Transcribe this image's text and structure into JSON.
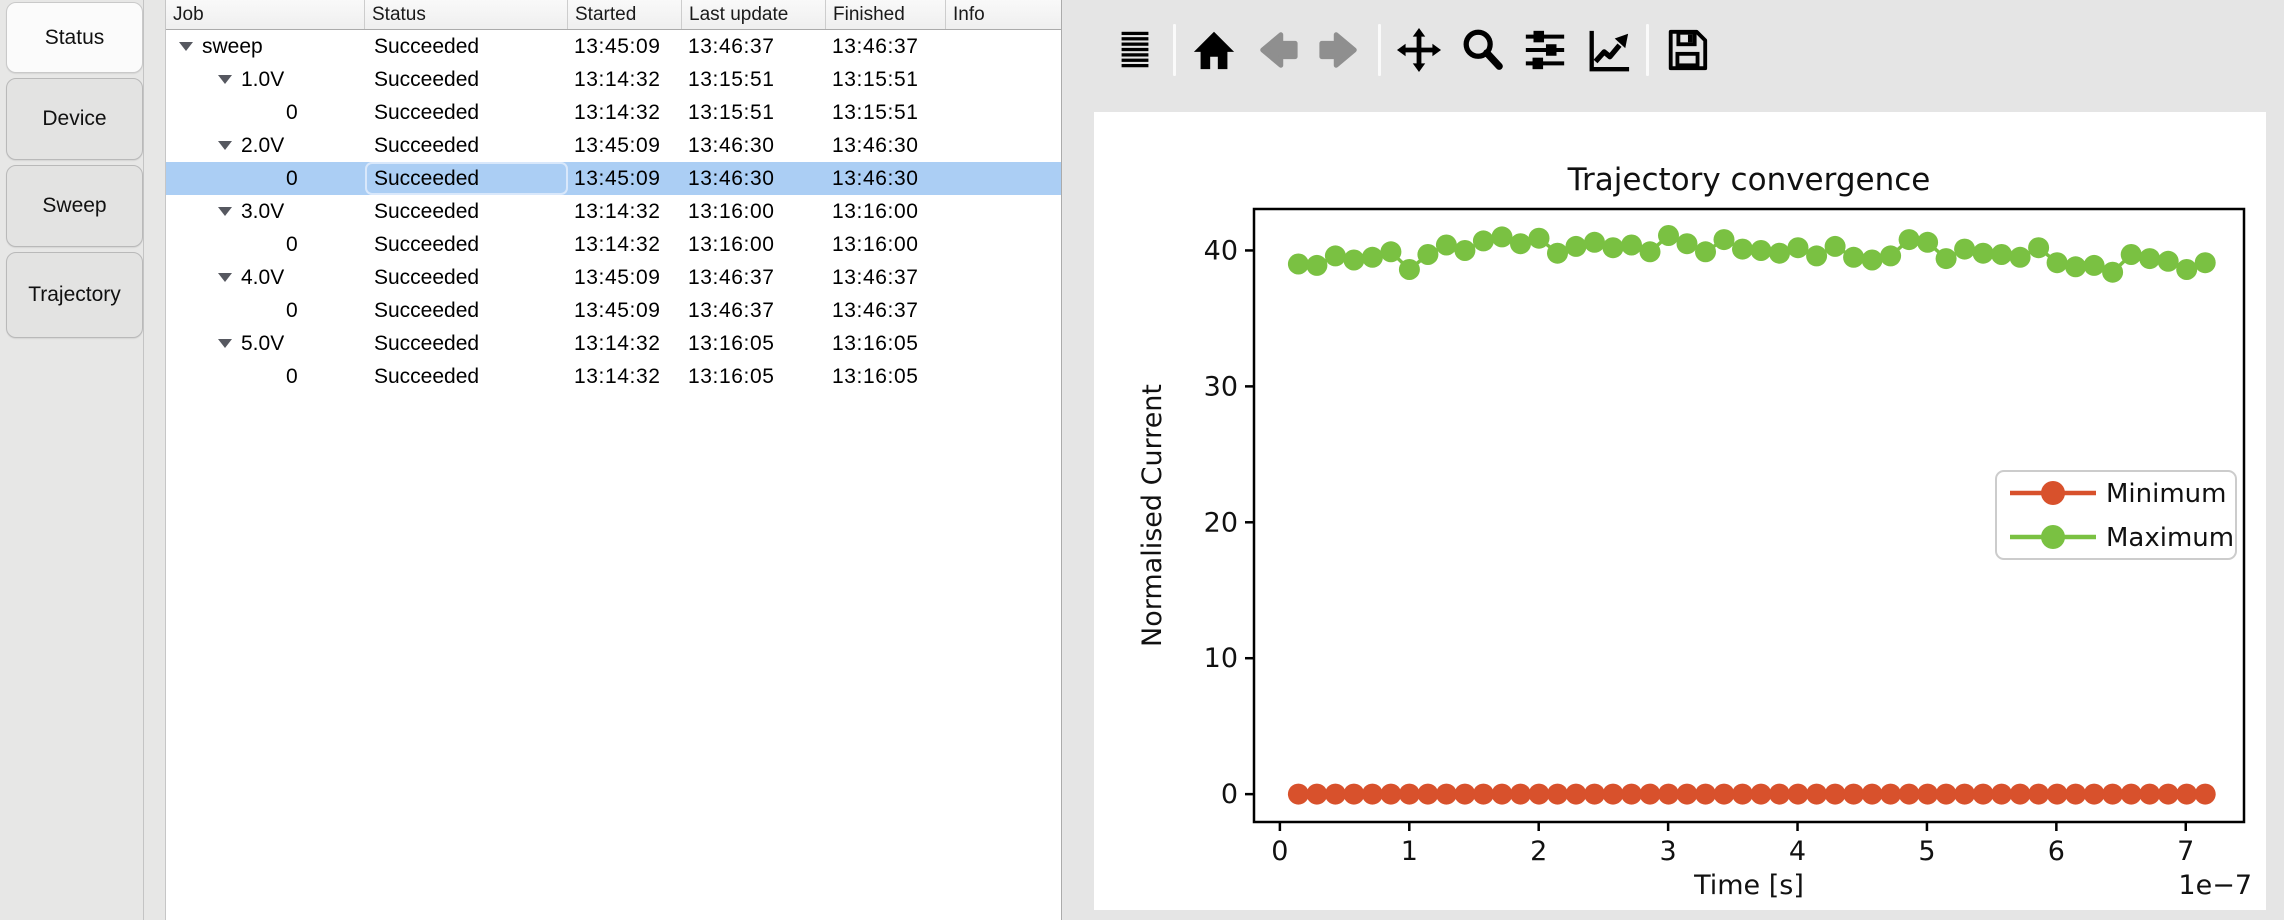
{
  "sidebar": {
    "tabs": [
      {
        "label": "Status",
        "active": true
      },
      {
        "label": "Device",
        "active": false
      },
      {
        "label": "Sweep",
        "active": false
      },
      {
        "label": "Trajectory",
        "active": false
      }
    ]
  },
  "table": {
    "columns": [
      "Job",
      "Status",
      "Started",
      "Last update",
      "Finished",
      "Info"
    ],
    "rows": [
      {
        "job": "sweep",
        "level": 0,
        "expandable": true,
        "status": "Succeeded",
        "started": "13:45:09",
        "last_update": "13:46:37",
        "finished": "13:46:37",
        "info": "",
        "selected": false
      },
      {
        "job": "1.0V",
        "level": 1,
        "expandable": true,
        "status": "Succeeded",
        "started": "13:14:32",
        "last_update": "13:15:51",
        "finished": "13:15:51",
        "info": "",
        "selected": false
      },
      {
        "job": "0",
        "level": 2,
        "expandable": false,
        "status": "Succeeded",
        "started": "13:14:32",
        "last_update": "13:15:51",
        "finished": "13:15:51",
        "info": "",
        "selected": false
      },
      {
        "job": "2.0V",
        "level": 1,
        "expandable": true,
        "status": "Succeeded",
        "started": "13:45:09",
        "last_update": "13:46:30",
        "finished": "13:46:30",
        "info": "",
        "selected": false
      },
      {
        "job": "0",
        "level": 2,
        "expandable": false,
        "status": "Succeeded",
        "started": "13:45:09",
        "last_update": "13:46:30",
        "finished": "13:46:30",
        "info": "",
        "selected": true
      },
      {
        "job": "3.0V",
        "level": 1,
        "expandable": true,
        "status": "Succeeded",
        "started": "13:14:32",
        "last_update": "13:16:00",
        "finished": "13:16:00",
        "info": "",
        "selected": false
      },
      {
        "job": "0",
        "level": 2,
        "expandable": false,
        "status": "Succeeded",
        "started": "13:14:32",
        "last_update": "13:16:00",
        "finished": "13:16:00",
        "info": "",
        "selected": false
      },
      {
        "job": "4.0V",
        "level": 1,
        "expandable": true,
        "status": "Succeeded",
        "started": "13:45:09",
        "last_update": "13:46:37",
        "finished": "13:46:37",
        "info": "",
        "selected": false
      },
      {
        "job": "0",
        "level": 2,
        "expandable": false,
        "status": "Succeeded",
        "started": "13:45:09",
        "last_update": "13:46:37",
        "finished": "13:46:37",
        "info": "",
        "selected": false
      },
      {
        "job": "5.0V",
        "level": 1,
        "expandable": true,
        "status": "Succeeded",
        "started": "13:14:32",
        "last_update": "13:16:05",
        "finished": "13:16:05",
        "info": "",
        "selected": false
      },
      {
        "job": "0",
        "level": 2,
        "expandable": false,
        "status": "Succeeded",
        "started": "13:14:32",
        "last_update": "13:16:05",
        "finished": "13:16:05",
        "info": "",
        "selected": false
      }
    ]
  },
  "toolbar": {
    "icons": [
      {
        "name": "menu-icon",
        "enabled": true
      },
      {
        "name": "separator"
      },
      {
        "name": "home-icon",
        "enabled": true
      },
      {
        "name": "back-icon",
        "enabled": false
      },
      {
        "name": "forward-icon",
        "enabled": false
      },
      {
        "name": "separator"
      },
      {
        "name": "pan-icon",
        "enabled": true
      },
      {
        "name": "zoom-icon",
        "enabled": true
      },
      {
        "name": "configure-subplots-icon",
        "enabled": true
      },
      {
        "name": "figure-options-icon",
        "enabled": true
      },
      {
        "name": "separator"
      },
      {
        "name": "save-icon",
        "enabled": true
      }
    ]
  },
  "chart_data": {
    "type": "line",
    "title": "Trajectory convergence",
    "xlabel": "Time [s]",
    "ylabel": "Normalised Current",
    "x_offset_label": "1e−7",
    "x_units": "1e-7 s",
    "xticks": [
      0,
      1,
      2,
      3,
      4,
      5,
      6,
      7
    ],
    "yticks": [
      0,
      10,
      20,
      30,
      40
    ],
    "xlim": [
      -0.2,
      7.45
    ],
    "ylim": [
      -2.05,
      43.05
    ],
    "grid": false,
    "legend_position": "center right",
    "colors": {
      "minimum": "#d8512c",
      "maximum": "#7ac142"
    },
    "x": [
      0.143,
      0.286,
      0.429,
      0.572,
      0.715,
      0.858,
      1.001,
      1.144,
      1.287,
      1.43,
      1.573,
      1.716,
      1.859,
      2.002,
      2.145,
      2.288,
      2.431,
      2.574,
      2.717,
      2.86,
      3.003,
      3.146,
      3.289,
      3.432,
      3.575,
      3.718,
      3.861,
      4.004,
      4.147,
      4.29,
      4.433,
      4.576,
      4.719,
      4.862,
      5.005,
      5.148,
      5.291,
      5.434,
      5.577,
      5.72,
      5.863,
      6.006,
      6.149,
      6.292,
      6.435,
      6.578,
      6.721,
      6.864,
      7.007,
      7.15
    ],
    "series": [
      {
        "name": "Minimum",
        "color": "#d8512c",
        "values": [
          0,
          0,
          0,
          0,
          0,
          0,
          0,
          0,
          0,
          0,
          0,
          0,
          0,
          0,
          0,
          0,
          0,
          0,
          0,
          0,
          0,
          0,
          0,
          0,
          0,
          0,
          0,
          0,
          0,
          0,
          0,
          0,
          0,
          0,
          0,
          0,
          0,
          0,
          0,
          0,
          0,
          0,
          0,
          0,
          0,
          0,
          0,
          0,
          0,
          0
        ]
      },
      {
        "name": "Maximum",
        "color": "#7ac142",
        "values": [
          39.0,
          38.9,
          39.6,
          39.3,
          39.5,
          39.9,
          38.6,
          39.7,
          40.4,
          40.0,
          40.7,
          41.0,
          40.5,
          40.9,
          39.8,
          40.3,
          40.6,
          40.2,
          40.4,
          39.9,
          41.1,
          40.5,
          39.9,
          40.8,
          40.1,
          40.0,
          39.8,
          40.2,
          39.6,
          40.3,
          39.5,
          39.3,
          39.6,
          40.8,
          40.6,
          39.4,
          40.1,
          39.8,
          39.7,
          39.5,
          40.2,
          39.1,
          38.8,
          38.9,
          38.4,
          39.7,
          39.4,
          39.2,
          38.6,
          39.1
        ]
      }
    ]
  }
}
